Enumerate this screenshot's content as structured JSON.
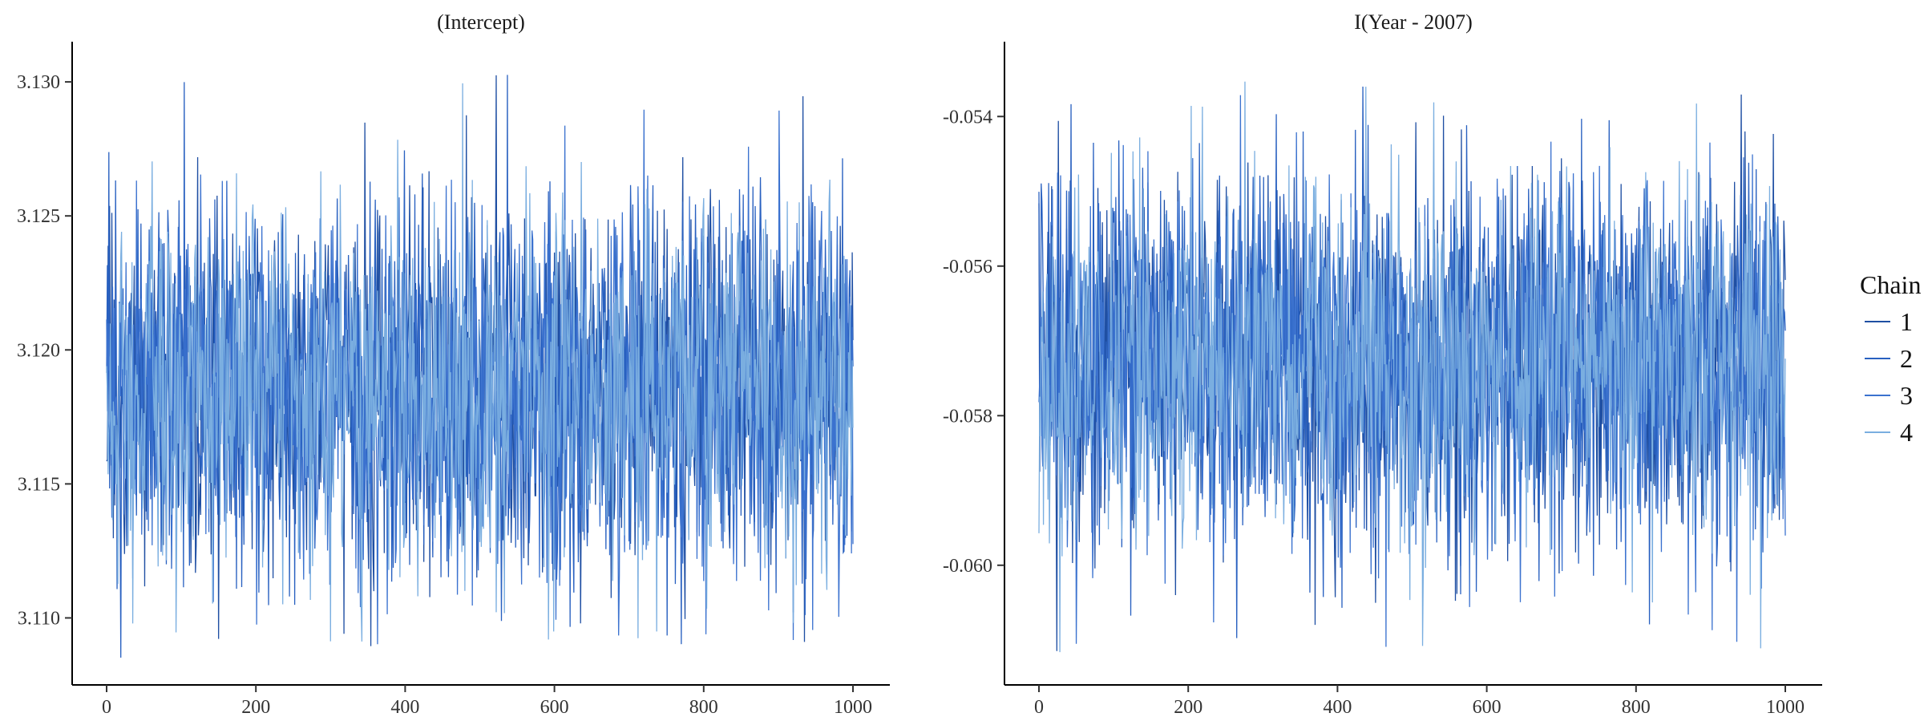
{
  "chart_data": [
    {
      "type": "line",
      "title": "(Intercept)",
      "xlabel": "",
      "ylabel": "",
      "xlim": [
        0,
        1000
      ],
      "ylim": [
        3.1075,
        3.1315
      ],
      "x_ticks": [
        0,
        200,
        400,
        600,
        800,
        1000
      ],
      "y_ticks": [
        "3.110",
        "3.115",
        "3.120",
        "3.125",
        "3.130"
      ],
      "center": 3.1185,
      "spread": 0.0034,
      "max": 3.1303,
      "min": 3.1084,
      "series": [
        {
          "name": "1",
          "color": "#1f4fa3"
        },
        {
          "name": "2",
          "color": "#2860c0"
        },
        {
          "name": "3",
          "color": "#3b72cf"
        },
        {
          "name": "4",
          "color": "#7aaee0"
        }
      ]
    },
    {
      "type": "line",
      "title": "I(Year - 2007)",
      "xlabel": "",
      "ylabel": "",
      "xlim": [
        0,
        1000
      ],
      "ylim": [
        -0.0616,
        -0.053
      ],
      "x_ticks": [
        0,
        200,
        400,
        600,
        800,
        1000
      ],
      "y_ticks": [
        "-0.054",
        "-0.056",
        "-0.058",
        "-0.060"
      ],
      "center": -0.0573,
      "spread": 0.0012,
      "max": -0.0535,
      "min": -0.0612,
      "series": [
        {
          "name": "1",
          "color": "#1f4fa3"
        },
        {
          "name": "2",
          "color": "#2860c0"
        },
        {
          "name": "3",
          "color": "#3b72cf"
        },
        {
          "name": "4",
          "color": "#7aaee0"
        }
      ]
    }
  ],
  "legend": {
    "title": "Chain",
    "placement": "right",
    "items": [
      {
        "label": "1",
        "color": "#1f4fa3"
      },
      {
        "label": "2",
        "color": "#2860c0"
      },
      {
        "label": "3",
        "color": "#3b72cf"
      },
      {
        "label": "4",
        "color": "#7aaee0"
      }
    ]
  }
}
